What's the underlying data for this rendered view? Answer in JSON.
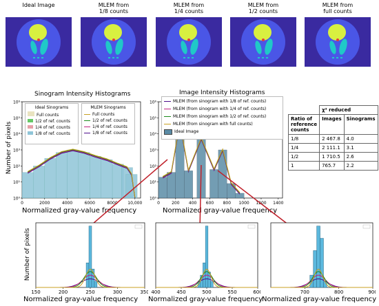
{
  "panel_titles": [
    "Ideal Image",
    "MLEM from\n1/8 counts",
    "MLEM from\n1/4 counts",
    "MLEM from\n1/2 counts",
    "MLEM from\nfull counts"
  ],
  "colors": {
    "ideal": "#5b8ca6",
    "full": "#d4c882",
    "half": "#66c866",
    "quarter": "#e6a0a8",
    "eighth": "#8fc5d8",
    "mlem_full": "#c8a020",
    "mlem_half": "#1a8a1a",
    "mlem_quarter": "#c02080",
    "mlem_eighth": "#4a0a8a",
    "arrow": "#c0202a",
    "phantom_bg": "#3a2aa0",
    "phantom_outer": "#4a56e6",
    "phantom_inner": "#20c8c8",
    "phantom_bright": "#d8f040"
  },
  "labels": {
    "sinogram_title": "Sinogram Intensity Histograms",
    "image_title": "Image Intensity Histograms",
    "xlabel": "Normalized gray-value frequency",
    "ylabel": "Number of pixels"
  },
  "sinogram_legend": {
    "ideal_title": "Ideal Sinograms",
    "ideal_items": [
      "Full counts",
      "1/2 of ref. counts",
      "1/4 of ref. counts",
      "1/8 of ref. counts"
    ],
    "mlem_title": "MLEM Sinograms",
    "mlem_items": [
      "Full counts",
      "1/2 of ref. counts",
      "1/4 of ref. counts",
      "1/8 of ref. counts"
    ]
  },
  "image_legend": {
    "items": [
      "MLEM (from sinogram with 1/8 of ref. counts)",
      "MLEM (from sinogram with 1/4 of ref. counts)",
      "MLEM (from sinogram with 1/2 of ref. counts)",
      "MLEM (from sinogram with full counts)",
      "Ideal Image"
    ]
  },
  "table": {
    "header_top": "χ² reduced",
    "col1": "Ratio of reference counts",
    "col2": "Images",
    "col3": "Sinograms",
    "rows": [
      {
        "ratio": "1/8",
        "images": "2 467.8",
        "sinograms": "4.0"
      },
      {
        "ratio": "1/4",
        "images": "2 111.1",
        "sinograms": "3.1"
      },
      {
        "ratio": "1/2",
        "images": "1 710.5",
        "sinograms": "2.6"
      },
      {
        "ratio": "1",
        "images": "765.7",
        "sinograms": "2.2"
      }
    ]
  },
  "chart_data": [
    {
      "type": "bar",
      "title": "Sinogram Intensity Histograms",
      "xlabel": "Normalized gray-value frequency",
      "ylabel": "Number of pixels",
      "xlim": [
        0,
        10500
      ],
      "ylim_log": [
        1,
        1000000
      ],
      "y_scale": "log",
      "x_ticks": [
        "0",
        "2000",
        "4000",
        "6000",
        "8000",
        "10,000"
      ],
      "x_tick_values": [
        0,
        2000,
        4000,
        6000,
        8000,
        10000
      ],
      "y_ticks": [
        "10⁰",
        "10¹",
        "10²",
        "10³",
        "10⁴",
        "10⁵",
        "10⁶"
      ],
      "x": [
        500,
        1500,
        2500,
        3500,
        4500,
        5500,
        6500,
        7500,
        8500,
        9300,
        9700,
        10000
      ],
      "values": [
        40,
        100,
        300,
        700,
        1000,
        700,
        400,
        250,
        130,
        80,
        30,
        1
      ]
    },
    {
      "type": "bar",
      "title": "Image Intensity Histograms",
      "xlabel": "Normalized gray-value frequency",
      "xlim": [
        0,
        1450
      ],
      "ylim_log": [
        1,
        1000000
      ],
      "y_scale": "log",
      "x_ticks": [
        "0",
        "200",
        "400",
        "600",
        "800",
        "1000",
        "1200",
        "1400"
      ],
      "x_tick_values": [
        0,
        200,
        400,
        600,
        800,
        1000,
        1200,
        1400
      ],
      "y_ticks": [
        "10⁰",
        "10¹",
        "10²",
        "10³",
        "10⁴",
        "10⁵",
        "10⁶"
      ],
      "x": [
        50,
        150,
        250,
        350,
        500,
        650,
        750,
        850,
        950
      ],
      "values": [
        20,
        40,
        50000,
        50,
        5000,
        60,
        1000,
        8,
        2
      ]
    },
    {
      "type": "bar",
      "xlabel": "Normalized gray-value frequency",
      "ylabel": "Number of pixels",
      "xlim": [
        150,
        350
      ],
      "ylim": [
        0,
        100
      ],
      "x_ticks": [
        "150",
        "200",
        "250",
        "300",
        "350"
      ],
      "x_tick_values": [
        150,
        200,
        250,
        300,
        350
      ],
      "x": [
        245,
        250,
        255,
        260
      ],
      "values": [
        40,
        100,
        30,
        10
      ]
    },
    {
      "type": "bar",
      "xlabel": "Normalized gray-value frequency",
      "xlim": [
        400,
        600
      ],
      "ylim": [
        0,
        100
      ],
      "x_ticks": [
        "400",
        "450",
        "500",
        "550",
        "600"
      ],
      "x_tick_values": [
        400,
        450,
        500,
        550,
        600
      ],
      "x": [
        485,
        490,
        495,
        500,
        505,
        510
      ],
      "values": [
        10,
        20,
        40,
        100,
        25,
        10
      ]
    },
    {
      "type": "bar",
      "xlabel": "Normalized gray-value frequency",
      "xlim": [
        600,
        900
      ],
      "ylim": [
        0,
        100
      ],
      "x_ticks": [
        "700",
        "800",
        "900"
      ],
      "x_tick_values": [
        700,
        800,
        900
      ],
      "x": [
        720,
        730,
        740,
        750,
        760
      ],
      "values": [
        20,
        60,
        100,
        80,
        10
      ]
    }
  ]
}
